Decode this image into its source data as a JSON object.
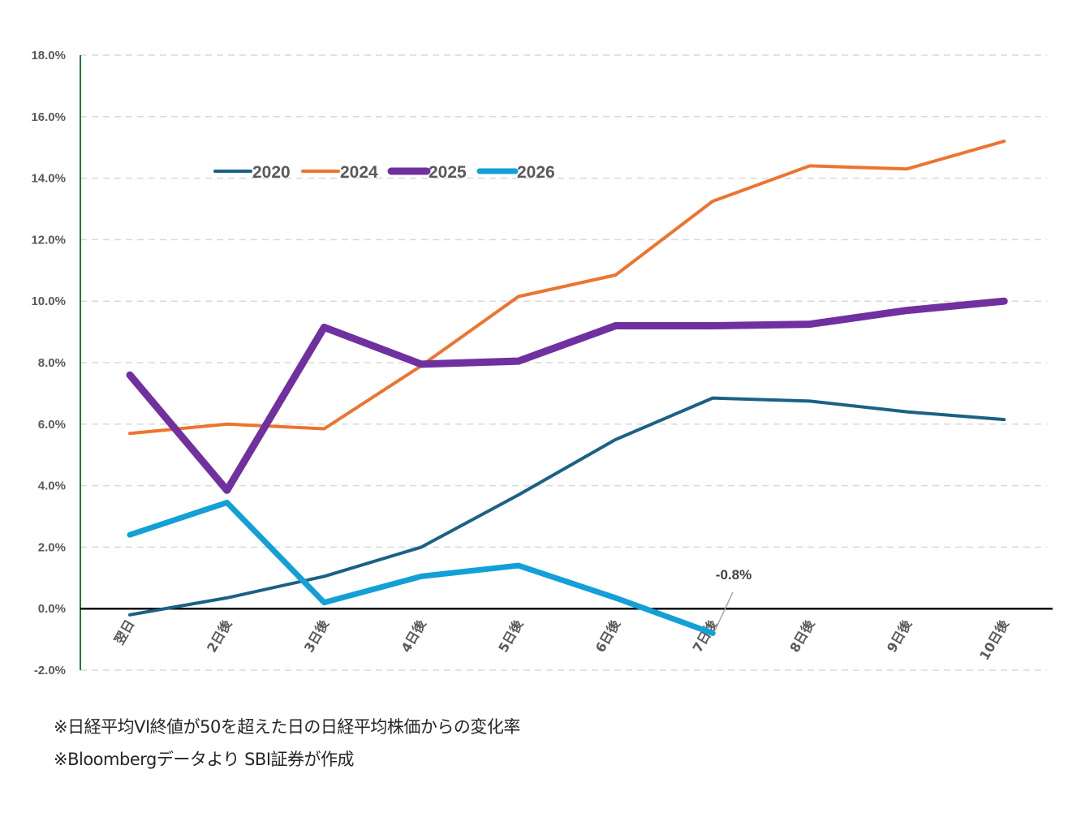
{
  "chart_data": {
    "type": "line",
    "title": "",
    "xlabel": "",
    "ylabel": "",
    "categories": [
      "翌日",
      "2日後",
      "3日後",
      "4日後",
      "5日後",
      "6日後",
      "7日後",
      "8日後",
      "9日後",
      "10日後"
    ],
    "ylim": [
      -2.0,
      18.0
    ],
    "yticks": [
      -2.0,
      0.0,
      2.0,
      4.0,
      6.0,
      8.0,
      10.0,
      12.0,
      14.0,
      16.0,
      18.0
    ],
    "ytick_labels": [
      "-2.0%",
      "0.0%",
      "2.0%",
      "4.0%",
      "6.0%",
      "8.0%",
      "10.0%",
      "12.0%",
      "14.0%",
      "16.0%",
      "18.0%"
    ],
    "grid": true,
    "legend_position": "top-left",
    "series": [
      {
        "name": "2020",
        "color": "#1B6185",
        "weight": "thin",
        "values": [
          -0.2,
          0.35,
          1.05,
          2.0,
          3.7,
          5.5,
          6.85,
          6.75,
          6.4,
          6.15
        ]
      },
      {
        "name": "2024",
        "color": "#ED7430",
        "weight": "thin",
        "values": [
          5.7,
          6.0,
          5.85,
          7.9,
          10.15,
          10.85,
          13.25,
          14.4,
          14.3,
          15.2
        ]
      },
      {
        "name": "2025",
        "color": "#7030A0",
        "weight": "thick",
        "values": [
          7.6,
          3.85,
          9.15,
          7.95,
          8.05,
          9.2,
          9.2,
          9.25,
          9.7,
          10.0
        ]
      },
      {
        "name": "2026",
        "color": "#12A0D7",
        "weight": "medium",
        "values": [
          2.4,
          3.45,
          0.2,
          1.05,
          1.4,
          0.35,
          -0.8,
          null,
          null,
          null
        ]
      }
    ],
    "annotations": [
      {
        "text": "-0.8%",
        "series": "2026",
        "category": "7日後",
        "value": -0.8
      }
    ]
  },
  "notes": [
    "※日経平均VI終値が50を超えた日の日経平均株価からの変化率",
    "※Bloombergデータより SBI証券が作成"
  ],
  "colors": {
    "axis_line": "#1E7B34",
    "zero_line": "#000000",
    "grid": "#D9D9D9",
    "tick_text": "#595959"
  }
}
